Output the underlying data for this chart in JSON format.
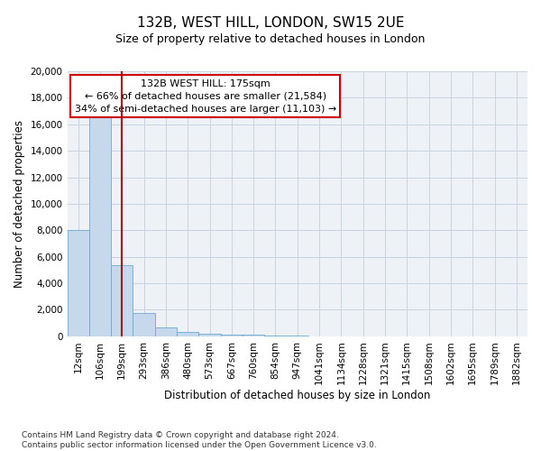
{
  "title": "132B, WEST HILL, LONDON, SW15 2UE",
  "subtitle": "Size of property relative to detached houses in London",
  "xlabel": "Distribution of detached houses by size in London",
  "ylabel": "Number of detached properties",
  "footnote1": "Contains HM Land Registry data © Crown copyright and database right 2024.",
  "footnote2": "Contains public sector information licensed under the Open Government Licence v3.0.",
  "annotation_line1": "132B WEST HILL: 175sqm",
  "annotation_line2": "← 66% of detached houses are smaller (21,584)",
  "annotation_line3": "34% of semi-detached houses are larger (11,103) →",
  "bar_color": "#c5d8ec",
  "bar_edge_color": "#6aaad4",
  "grid_color": "#c8d4e0",
  "vline_color": "#aa0000",
  "box_edge_color": "#cc0000",
  "categories": [
    "12sqm",
    "106sqm",
    "199sqm",
    "293sqm",
    "386sqm",
    "480sqm",
    "573sqm",
    "667sqm",
    "760sqm",
    "854sqm",
    "947sqm",
    "1041sqm",
    "1134sqm",
    "1228sqm",
    "1321sqm",
    "1415sqm",
    "1508sqm",
    "1602sqm",
    "1695sqm",
    "1789sqm",
    "1882sqm"
  ],
  "values": [
    8050,
    16500,
    5350,
    1750,
    680,
    330,
    185,
    155,
    120,
    60,
    30,
    10,
    5,
    3,
    2,
    1,
    1,
    0,
    0,
    0,
    0
  ],
  "ylim": [
    0,
    20000
  ],
  "yticks": [
    0,
    2000,
    4000,
    6000,
    8000,
    10000,
    12000,
    14000,
    16000,
    18000,
    20000
  ],
  "vline_x": 2.5,
  "background_color": "#eef2f7",
  "title_fontsize": 11,
  "subtitle_fontsize": 9,
  "ylabel_fontsize": 8.5,
  "xlabel_fontsize": 8.5,
  "tick_fontsize": 7.5,
  "footnote_fontsize": 6.5
}
